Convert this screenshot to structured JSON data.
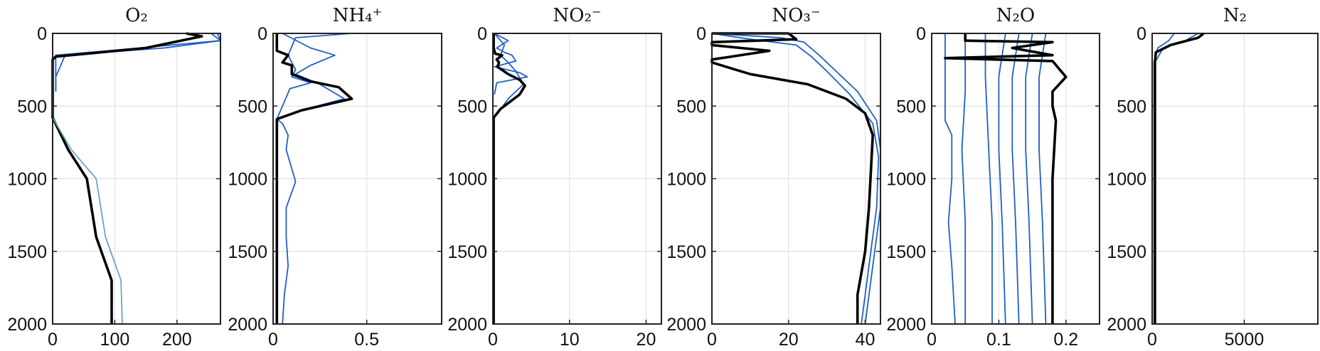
{
  "figure": {
    "accent_color": "#1f5fc8",
    "light_color": "#6aa6c2",
    "final_color": "#000000",
    "grid": true
  },
  "chart_data": [
    {
      "type": "line",
      "title": "O₂",
      "xlim": [
        0,
        270
      ],
      "ylim": [
        0,
        2000
      ],
      "xticks": [
        {
          "v": 0,
          "label": "0"
        },
        {
          "v": 100,
          "label": "100"
        },
        {
          "v": 200,
          "label": "200"
        }
      ],
      "yticks": [
        {
          "v": 0,
          "label": "0"
        },
        {
          "v": 500,
          "label": "500"
        },
        {
          "v": 1000,
          "label": "1000"
        },
        {
          "v": 1500,
          "label": "1500"
        },
        {
          "v": 2000,
          "label": "2000"
        }
      ],
      "series": [
        {
          "role": "early",
          "x": [
            255,
            270,
            140,
            5,
            5,
            5
          ],
          "y": [
            0,
            50,
            100,
            150,
            300,
            400
          ]
        },
        {
          "role": "early",
          "x": [
            265,
            270,
            180,
            20,
            5,
            5
          ],
          "y": [
            0,
            50,
            100,
            150,
            300,
            400
          ]
        },
        {
          "role": "final",
          "x": [
            215,
            240,
            150,
            5,
            0,
            0,
            0,
            25,
            55,
            70,
            95,
            95
          ],
          "y": [
            0,
            20,
            100,
            160,
            180,
            400,
            580,
            800,
            1000,
            1400,
            1700,
            2000
          ]
        },
        {
          "role": "envelope",
          "x": [
            0,
            30,
            70,
            85,
            110,
            112
          ],
          "y": [
            580,
            800,
            1000,
            1400,
            1700,
            2000
          ]
        }
      ]
    },
    {
      "type": "line",
      "title": "NH₄⁺",
      "xlim": [
        0,
        0.9
      ],
      "ylim": [
        0,
        2000
      ],
      "xticks": [
        {
          "v": 0,
          "label": "0"
        },
        {
          "v": 0.5,
          "label": "0.5"
        }
      ],
      "yticks": [
        {
          "v": 0,
          "label": "0"
        },
        {
          "v": 500,
          "label": "500"
        },
        {
          "v": 1000,
          "label": "1000"
        },
        {
          "v": 1500,
          "label": "1500"
        },
        {
          "v": 2000,
          "label": "2000"
        }
      ],
      "series": [
        {
          "role": "early",
          "x": [
            0.42,
            0.12,
            0.08,
            0.1,
            0.12,
            0.1,
            0.2,
            0.09,
            0.02,
            0.05,
            0.08,
            0.07,
            0.12,
            0.07,
            0.07,
            0.08,
            0.06,
            0.05
          ],
          "y": [
            0,
            30,
            150,
            200,
            250,
            300,
            340,
            380,
            590,
            620,
            700,
            800,
            1020,
            1200,
            1400,
            1600,
            1800,
            2000
          ]
        },
        {
          "role": "early",
          "x": [
            0.05,
            0.2,
            0.33,
            0.2,
            0.12,
            0.25,
            0.38,
            0.15,
            0.02
          ],
          "y": [
            0,
            100,
            150,
            220,
            280,
            350,
            450,
            530,
            590
          ]
        },
        {
          "role": "final",
          "x": [
            0.02,
            0.02,
            0.08,
            0.05,
            0.1,
            0.1,
            0.2,
            0.35,
            0.42,
            0.15,
            0.02,
            0.02,
            0.02
          ],
          "y": [
            0,
            120,
            150,
            200,
            220,
            280,
            330,
            370,
            450,
            530,
            590,
            1000,
            2000
          ]
        }
      ]
    },
    {
      "type": "line",
      "title": "NO₂⁻",
      "xlim": [
        0,
        22
      ],
      "ylim": [
        0,
        2000
      ],
      "xticks": [
        {
          "v": 0,
          "label": "0"
        },
        {
          "v": 10,
          "label": "10"
        },
        {
          "v": 20,
          "label": "20"
        }
      ],
      "yticks": [
        {
          "v": 0,
          "label": "0"
        },
        {
          "v": 500,
          "label": "500"
        },
        {
          "v": 1000,
          "label": "1000"
        },
        {
          "v": 1500,
          "label": "1500"
        },
        {
          "v": 2000,
          "label": "2000"
        }
      ],
      "series": [
        {
          "role": "early",
          "x": [
            0.2,
            2,
            0.5,
            1.5,
            2.5,
            3,
            0.2,
            3.5,
            4.5,
            0.5,
            0.2
          ],
          "y": [
            0,
            50,
            100,
            130,
            150,
            190,
            230,
            270,
            300,
            340,
            420
          ]
        },
        {
          "role": "early",
          "x": [
            0.2,
            1.5,
            1,
            2,
            3,
            4,
            2,
            0.5
          ],
          "y": [
            0,
            80,
            150,
            200,
            260,
            350,
            450,
            560
          ]
        },
        {
          "role": "final",
          "x": [
            0.1,
            0.1,
            0.3,
            1.2,
            0.5,
            0.8,
            0.6,
            2,
            3.5,
            4.2,
            3.5,
            1,
            0.1,
            0.1
          ],
          "y": [
            0,
            100,
            140,
            150,
            180,
            200,
            230,
            280,
            320,
            360,
            420,
            520,
            580,
            2000
          ]
        }
      ]
    },
    {
      "type": "line",
      "title": "NO₃⁻",
      "xlim": [
        0,
        44
      ],
      "ylim": [
        0,
        2000
      ],
      "xticks": [
        {
          "v": 0,
          "label": "0"
        },
        {
          "v": 20,
          "label": "20"
        },
        {
          "v": 40,
          "label": "40"
        }
      ],
      "yticks": [
        {
          "v": 0,
          "label": "0"
        },
        {
          "v": 500,
          "label": "500"
        },
        {
          "v": 1000,
          "label": "1000"
        },
        {
          "v": 1500,
          "label": "1500"
        },
        {
          "v": 2000,
          "label": "2000"
        }
      ],
      "series": [
        {
          "role": "early",
          "x": [
            0,
            18,
            24,
            28,
            32,
            38,
            43,
            44,
            44,
            42,
            40
          ],
          "y": [
            0,
            30,
            60,
            150,
            250,
            400,
            600,
            800,
            1200,
            1600,
            2000
          ]
        },
        {
          "role": "early",
          "x": [
            0,
            10,
            22,
            26,
            30,
            36,
            42,
            43.5,
            43,
            41,
            39
          ],
          "y": [
            0,
            40,
            80,
            160,
            260,
            420,
            620,
            850,
            1200,
            1600,
            2000
          ]
        },
        {
          "role": "final",
          "x": [
            0,
            20,
            22,
            12,
            0,
            0,
            15,
            0,
            0,
            10,
            25,
            35,
            40,
            42,
            41,
            40,
            38,
            38
          ],
          "y": [
            0,
            0,
            40,
            50,
            60,
            80,
            120,
            180,
            200,
            280,
            350,
            450,
            550,
            700,
            1200,
            1500,
            1800,
            2000
          ]
        }
      ]
    },
    {
      "type": "line",
      "title": "N₂O",
      "xlim": [
        0,
        0.25
      ],
      "ylim": [
        0,
        2000
      ],
      "xticks": [
        {
          "v": 0,
          "label": "0"
        },
        {
          "v": 0.1,
          "label": "0.1"
        },
        {
          "v": 0.2,
          "label": "0.2"
        }
      ],
      "yticks": [
        {
          "v": 0,
          "label": "0"
        },
        {
          "v": 500,
          "label": "500"
        },
        {
          "v": 1000,
          "label": "1000"
        },
        {
          "v": 1500,
          "label": "1500"
        },
        {
          "v": 2000,
          "label": "2000"
        }
      ],
      "series": [
        {
          "role": "early",
          "x": [
            0.02,
            0.02,
            0.02,
            0.03,
            0.03,
            0.025,
            0.03,
            0.035
          ],
          "y": [
            0,
            200,
            600,
            700,
            1000,
            1300,
            1600,
            2000
          ]
        },
        {
          "role": "early",
          "x": [
            0.05,
            0.05,
            0.045,
            0.05,
            0.05
          ],
          "y": [
            0,
            400,
            800,
            1300,
            2000
          ]
        },
        {
          "role": "early",
          "x": [
            0.08,
            0.08,
            0.085,
            0.09,
            0.09
          ],
          "y": [
            0,
            300,
            800,
            1300,
            2000
          ]
        },
        {
          "role": "early",
          "x": [
            0.11,
            0.1,
            0.1,
            0.105,
            0.11
          ],
          "y": [
            0,
            300,
            800,
            1300,
            2000
          ]
        },
        {
          "role": "early",
          "x": [
            0.13,
            0.12,
            0.12,
            0.125,
            0.13
          ],
          "y": [
            0,
            300,
            800,
            1300,
            2000
          ]
        },
        {
          "role": "early",
          "x": [
            0.15,
            0.14,
            0.14,
            0.145,
            0.15
          ],
          "y": [
            0,
            300,
            800,
            1300,
            2000
          ]
        },
        {
          "role": "early",
          "x": [
            0.17,
            0.16,
            0.16,
            0.165,
            0.17
          ],
          "y": [
            0,
            300,
            800,
            1300,
            2000
          ]
        },
        {
          "role": "final",
          "x": [
            0.05,
            0.05,
            0.18,
            0.12,
            0.18,
            0.02,
            0.18,
            0.2,
            0.18,
            0.18,
            0.185,
            0.18,
            0.18
          ],
          "y": [
            0,
            50,
            60,
            100,
            150,
            170,
            190,
            300,
            400,
            500,
            600,
            1000,
            2000
          ]
        }
      ]
    },
    {
      "type": "line",
      "title": "N₂",
      "xlim": [
        0,
        9000
      ],
      "ylim": [
        0,
        2000
      ],
      "xticks": [
        {
          "v": 0,
          "label": "0"
        },
        {
          "v": 5000,
          "label": "5000"
        }
      ],
      "yticks": [
        {
          "v": 0,
          "label": "0"
        },
        {
          "v": 500,
          "label": "500"
        },
        {
          "v": 1000,
          "label": "1000"
        },
        {
          "v": 1500,
          "label": "1500"
        },
        {
          "v": 2000,
          "label": "2000"
        }
      ],
      "series": [
        {
          "role": "early",
          "x": [
            1200,
            900,
            300,
            100,
            100
          ],
          "y": [
            0,
            50,
            100,
            200,
            2000
          ]
        },
        {
          "role": "early",
          "x": [
            2500,
            1800,
            600,
            150,
            150
          ],
          "y": [
            0,
            50,
            100,
            200,
            2000
          ]
        },
        {
          "role": "final",
          "x": [
            2800,
            2500,
            1000,
            200,
            150,
            150
          ],
          "y": [
            0,
            30,
            80,
            130,
            200,
            2000
          ]
        }
      ]
    }
  ]
}
